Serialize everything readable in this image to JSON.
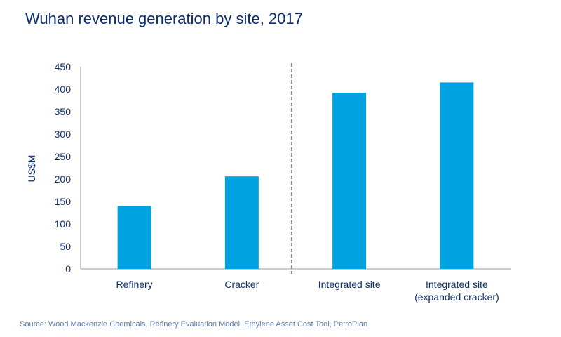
{
  "chart_data": {
    "type": "bar",
    "title": "Wuhan revenue generation by site, 2017",
    "ylabel": "US$M",
    "xlabel": "",
    "categories": [
      [
        "Refinery"
      ],
      [
        "Cracker"
      ],
      [
        "Integrated site"
      ],
      [
        "Integrated site",
        "(expanded cracker)"
      ]
    ],
    "values": [
      140,
      206,
      392,
      415
    ],
    "ylim": [
      0,
      450
    ],
    "yticks": [
      0,
      50,
      100,
      150,
      200,
      250,
      300,
      350,
      400,
      450
    ],
    "grid": false,
    "separator": "dashed vertical line between Cracker and Integrated site",
    "colors": {
      "bar": "#00a3e0",
      "text": "#0b2d6e",
      "axis": "#999999",
      "separator": "#888888"
    }
  },
  "source": "Source: Wood Mackenzie Chemicals, Refinery Evaluation Model, Ethylene Asset Cost Tool, PetroPlan"
}
